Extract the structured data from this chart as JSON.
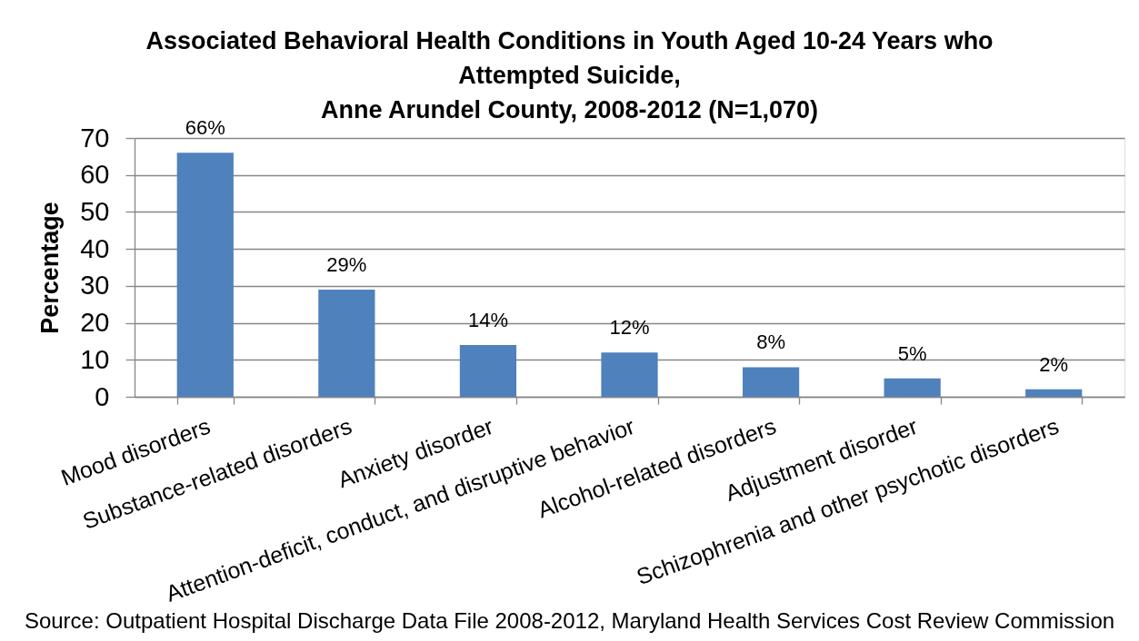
{
  "chart_data": {
    "type": "bar",
    "title": "Associated Behavioral Health Conditions in Youth Aged 10-24 Years who\nAttempted Suicide,\nAnne Arundel County, 2008-2012 (N=1,070)",
    "ylabel": "Percentage",
    "categories": [
      "Mood disorders",
      "Substance-related disorders",
      "Anxiety disorder",
      "Attention-deficit, conduct, and disruptive behavior",
      "Alcohol-related disorders",
      "Adjustment disorder",
      "Schizophrenia and other psychotic disorders"
    ],
    "values": [
      66,
      29,
      14,
      12,
      8,
      5,
      2
    ],
    "value_labels": [
      "66%",
      "29%",
      "14%",
      "12%",
      "8%",
      "5%",
      "2%"
    ],
    "color": "#4f81bd",
    "ylim": [
      0,
      70
    ],
    "yticks": [
      0,
      10,
      20,
      30,
      40,
      50,
      60,
      70
    ],
    "grid": "y",
    "annotations": [
      "Source: Outpatient Hospital Discharge Data File 2008-2012, Maryland Health Services Cost Review  Commission"
    ]
  }
}
